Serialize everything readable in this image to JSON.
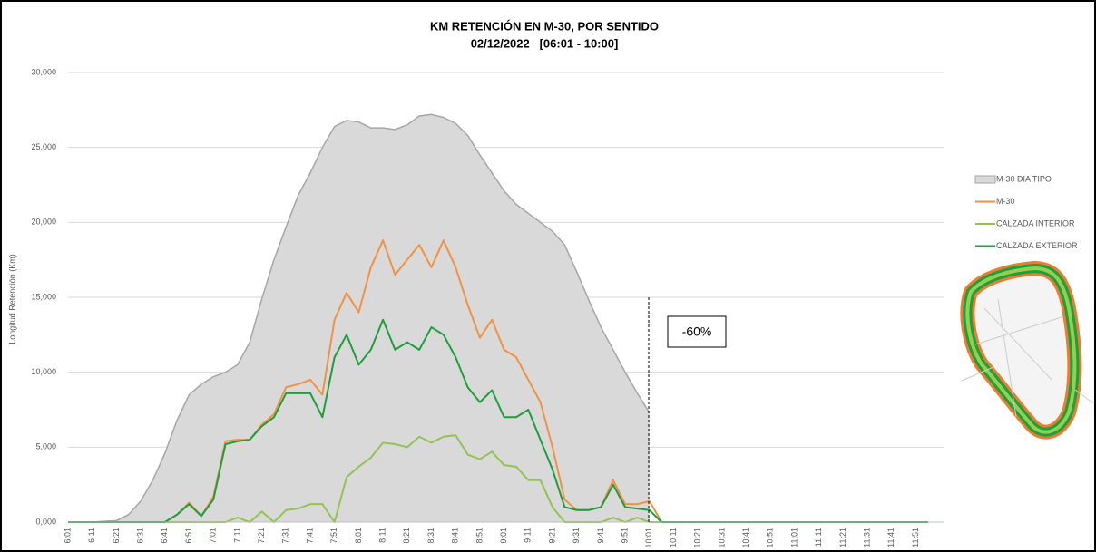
{
  "chart_data": {
    "type": "line",
    "title": "KM RETENCIÓN EN M-30, POR SENTIDO",
    "subtitle": "02/12/2022   [06:01 - 10:00]",
    "y_label": "Longitud Retención (Km)",
    "annotation": "-60%",
    "legend": "right",
    "grid": true,
    "ylim": [
      0,
      30000
    ],
    "yticks": [
      {
        "value": 0,
        "label": "0,000"
      },
      {
        "value": 5000,
        "label": "5,000"
      },
      {
        "value": 10000,
        "label": "10,000"
      },
      {
        "value": 15000,
        "label": "15,000"
      },
      {
        "value": 20000,
        "label": "20,000"
      },
      {
        "value": 25000,
        "label": "25,000"
      },
      {
        "value": 30000,
        "label": "30,000"
      }
    ],
    "categories": [
      "6:01",
      null,
      "6:11",
      null,
      "6:21",
      null,
      "6:31",
      null,
      "6:41",
      null,
      "6:51",
      null,
      "7:01",
      null,
      "7:11",
      null,
      "7:21",
      null,
      "7:31",
      null,
      "7:41",
      null,
      "7:51",
      null,
      "8:01",
      null,
      "8:11",
      null,
      "8:21",
      null,
      "8:31",
      null,
      "8:41",
      null,
      "8:51",
      null,
      "9:01",
      null,
      "9:11",
      null,
      "9:21",
      null,
      "9:31",
      null,
      "9:41",
      null,
      "9:51",
      null,
      "10:01",
      null,
      "10:11",
      null,
      "10:21",
      null,
      "10:31",
      null,
      "10:41",
      null,
      "10:51",
      null,
      "11:01",
      null,
      "11:11",
      null,
      "11:21",
      null,
      "11:31",
      null,
      "11:41",
      null,
      "11:51",
      null
    ],
    "series": [
      {
        "name": "M-30 DIA TIPO",
        "color": "#d9d9d9",
        "stroke": "#a6a6a6",
        "area": true,
        "values": [
          0,
          0,
          0,
          50,
          100,
          500,
          1400,
          2800,
          4600,
          6800,
          8500,
          9200,
          9700,
          10000,
          10500,
          12000,
          14900,
          17500,
          19700,
          21800,
          23300,
          25000,
          26400,
          26800,
          26700,
          26300,
          26300,
          26200,
          26500,
          27100,
          27200,
          27000,
          26600,
          25800,
          24500,
          23300,
          22100,
          21200,
          20600,
          20000,
          19400,
          18500,
          16700,
          14800,
          13000,
          11500,
          10000,
          8600,
          7300,
          null,
          null,
          null,
          null,
          null,
          null,
          null,
          null,
          null,
          null,
          null,
          null,
          null,
          null,
          null,
          null,
          null,
          null,
          null,
          null,
          null,
          null,
          null
        ]
      },
      {
        "name": "M-30",
        "color": "#f29145",
        "values": [
          0,
          0,
          0,
          0,
          0,
          0,
          0,
          0,
          0,
          500,
          1300,
          400,
          1700,
          5400,
          5500,
          5500,
          6500,
          7200,
          9000,
          9200,
          9500,
          8500,
          13500,
          15300,
          14000,
          17000,
          18800,
          16500,
          17500,
          18500,
          17000,
          18800,
          17000,
          14500,
          12300,
          13500,
          11500,
          11000,
          9500,
          8000,
          5000,
          1500,
          800,
          800,
          1000,
          2800,
          1200,
          1200,
          1400,
          0,
          0,
          0,
          0,
          0,
          0,
          0,
          0,
          0,
          0,
          0,
          0,
          0,
          0,
          0,
          0,
          0,
          0,
          0,
          0,
          0,
          0,
          0
        ]
      },
      {
        "name": "CALZADA INTERIOR",
        "color": "#92c353",
        "values": [
          0,
          0,
          0,
          0,
          0,
          0,
          0,
          0,
          0,
          0,
          0,
          0,
          0,
          0,
          300,
          0,
          700,
          0,
          800,
          900,
          1200,
          1200,
          0,
          3000,
          3700,
          4300,
          5300,
          5200,
          5000,
          5700,
          5300,
          5700,
          5800,
          4500,
          4200,
          4700,
          3800,
          3700,
          2800,
          2800,
          1000,
          0,
          0,
          0,
          0,
          300,
          0,
          300,
          0,
          0,
          0,
          0,
          0,
          0,
          0,
          0,
          0,
          0,
          0,
          0,
          0,
          0,
          0,
          0,
          0,
          0,
          0,
          0,
          0,
          0,
          0,
          0
        ]
      },
      {
        "name": "CALZADA EXTERIOR",
        "color": "#1e9e3c",
        "values": [
          0,
          0,
          0,
          0,
          0,
          0,
          0,
          0,
          0,
          500,
          1200,
          400,
          1500,
          5200,
          5400,
          5500,
          6400,
          7000,
          8600,
          8600,
          8600,
          7000,
          11000,
          12500,
          10500,
          11500,
          13500,
          11500,
          12000,
          11500,
          13000,
          12500,
          11000,
          9000,
          8000,
          8800,
          7000,
          7000,
          7500,
          5500,
          3500,
          1000,
          800,
          800,
          1000,
          2500,
          1000,
          900,
          800,
          0,
          0,
          0,
          0,
          0,
          0,
          0,
          0,
          0,
          0,
          0,
          0,
          0,
          0,
          0,
          0,
          0,
          0,
          0,
          0,
          0,
          0,
          0
        ]
      }
    ]
  }
}
